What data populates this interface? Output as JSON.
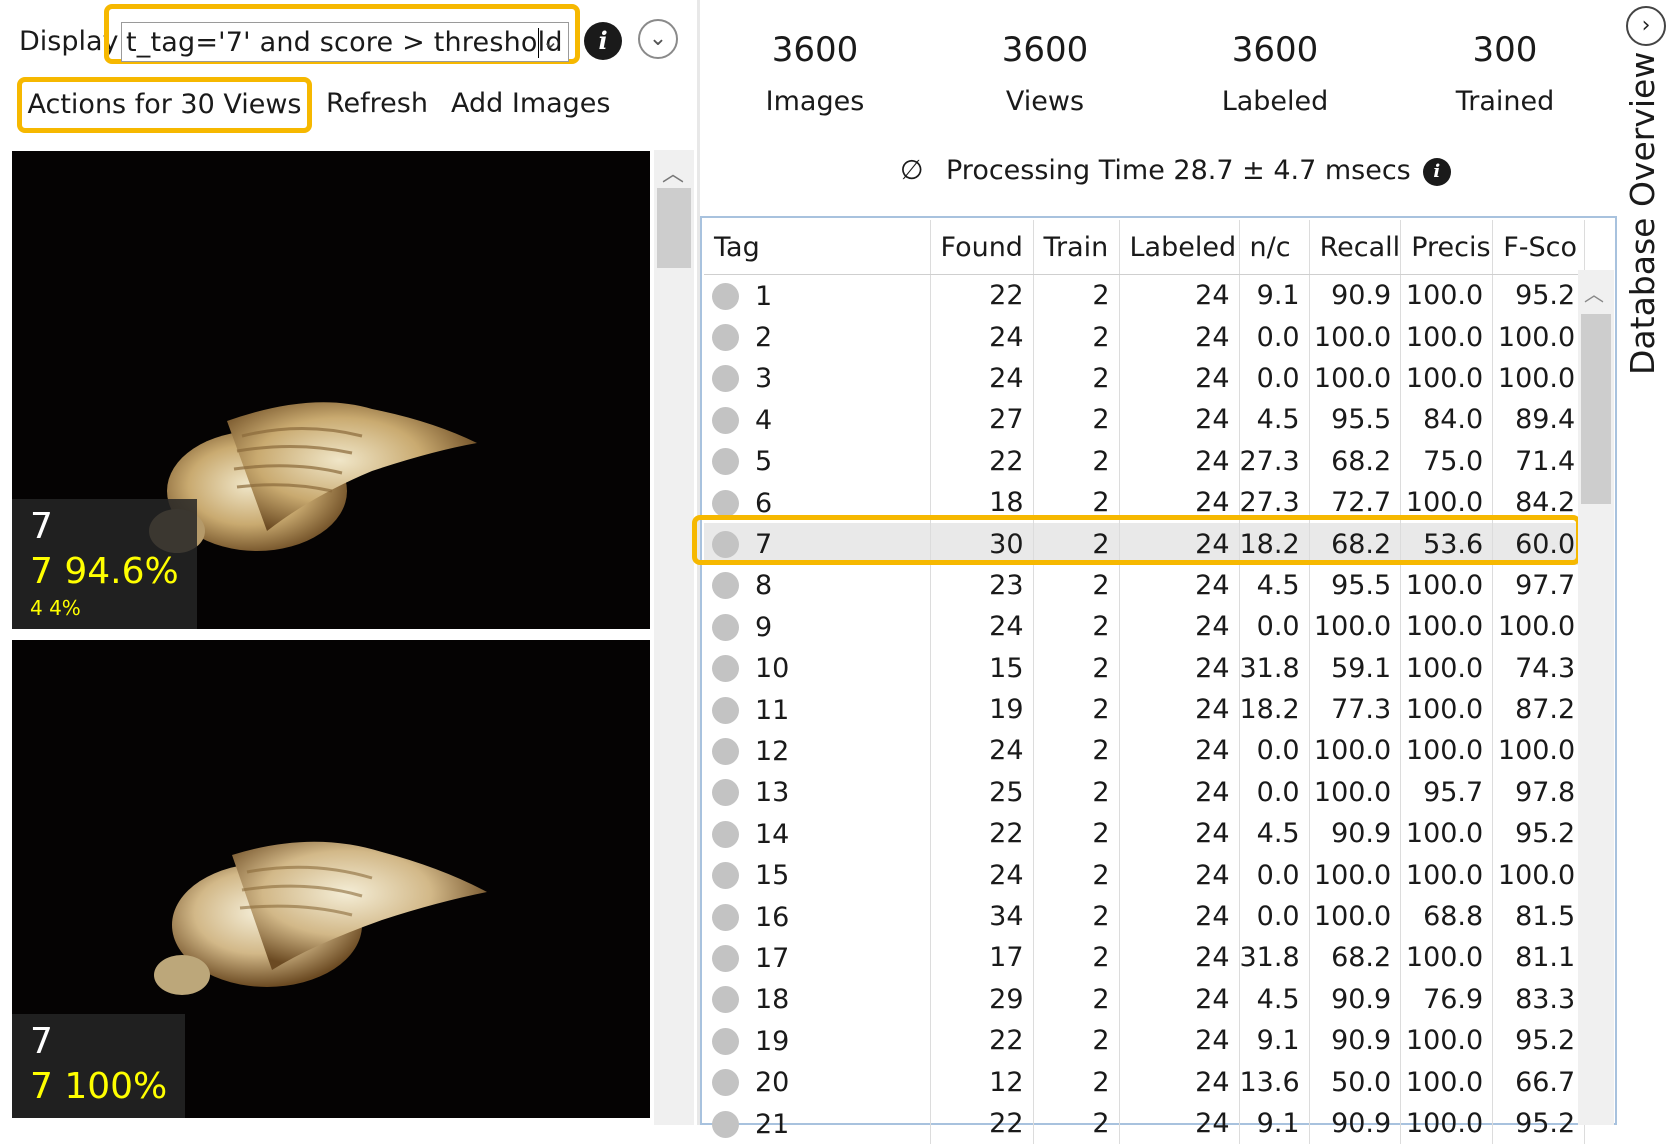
{
  "toolbar": {
    "display_label": "Display",
    "query_value": "t_tag='7' and score > threshold",
    "actions_button": "Actions for 30 Views",
    "refresh_button": "Refresh",
    "add_images_button": "Add Images"
  },
  "thumbnails": [
    {
      "tag": "7",
      "score": "7 94.6%",
      "secondary": "4 4%"
    },
    {
      "tag": "7",
      "score": "7 100%",
      "secondary": ""
    }
  ],
  "stats": [
    {
      "value": "3600",
      "label": "Images"
    },
    {
      "value": "3600",
      "label": "Views"
    },
    {
      "value": "3600",
      "label": "Labeled"
    },
    {
      "value": "300",
      "label": "Trained"
    }
  ],
  "processing": {
    "symbol": "∅",
    "text": "Processing Time 28.7 ± 4.7 msecs"
  },
  "table": {
    "columns": [
      "Tag",
      "Found",
      "Train",
      "Labeled",
      "n/c",
      "Recall",
      "Precis",
      "F-Sco"
    ],
    "selected_tag": "7",
    "rows": [
      [
        "1",
        "22",
        "2",
        "24",
        "9.1",
        "90.9",
        "100.0",
        "95.2"
      ],
      [
        "2",
        "24",
        "2",
        "24",
        "0.0",
        "100.0",
        "100.0",
        "100.0"
      ],
      [
        "3",
        "24",
        "2",
        "24",
        "0.0",
        "100.0",
        "100.0",
        "100.0"
      ],
      [
        "4",
        "27",
        "2",
        "24",
        "4.5",
        "95.5",
        "84.0",
        "89.4"
      ],
      [
        "5",
        "22",
        "2",
        "24",
        "27.3",
        "68.2",
        "75.0",
        "71.4"
      ],
      [
        "6",
        "18",
        "2",
        "24",
        "27.3",
        "72.7",
        "100.0",
        "84.2"
      ],
      [
        "7",
        "30",
        "2",
        "24",
        "18.2",
        "68.2",
        "53.6",
        "60.0"
      ],
      [
        "8",
        "23",
        "2",
        "24",
        "4.5",
        "95.5",
        "100.0",
        "97.7"
      ],
      [
        "9",
        "24",
        "2",
        "24",
        "0.0",
        "100.0",
        "100.0",
        "100.0"
      ],
      [
        "10",
        "15",
        "2",
        "24",
        "31.8",
        "59.1",
        "100.0",
        "74.3"
      ],
      [
        "11",
        "19",
        "2",
        "24",
        "18.2",
        "77.3",
        "100.0",
        "87.2"
      ],
      [
        "12",
        "24",
        "2",
        "24",
        "0.0",
        "100.0",
        "100.0",
        "100.0"
      ],
      [
        "13",
        "25",
        "2",
        "24",
        "0.0",
        "100.0",
        "95.7",
        "97.8"
      ],
      [
        "14",
        "22",
        "2",
        "24",
        "4.5",
        "90.9",
        "100.0",
        "95.2"
      ],
      [
        "15",
        "24",
        "2",
        "24",
        "0.0",
        "100.0",
        "100.0",
        "100.0"
      ],
      [
        "16",
        "34",
        "2",
        "24",
        "0.0",
        "100.0",
        "68.8",
        "81.5"
      ],
      [
        "17",
        "17",
        "2",
        "24",
        "31.8",
        "68.2",
        "100.0",
        "81.1"
      ],
      [
        "18",
        "29",
        "2",
        "24",
        "4.5",
        "90.9",
        "76.9",
        "83.3"
      ],
      [
        "19",
        "22",
        "2",
        "24",
        "9.1",
        "90.9",
        "100.0",
        "95.2"
      ],
      [
        "20",
        "12",
        "2",
        "24",
        "13.6",
        "50.0",
        "100.0",
        "66.7"
      ],
      [
        "21",
        "22",
        "2",
        "24",
        "9.1",
        "90.9",
        "100.0",
        "95.2"
      ]
    ]
  },
  "side_tab": {
    "label": "Database Overview",
    "icon": "chevron-right-icon"
  },
  "colors": {
    "highlight": "#f6b800",
    "score_text": "#ffff00",
    "table_border": "#a8c2de",
    "selected_row": "#e9e9e9",
    "tag_dot": "#c3c3c3"
  }
}
